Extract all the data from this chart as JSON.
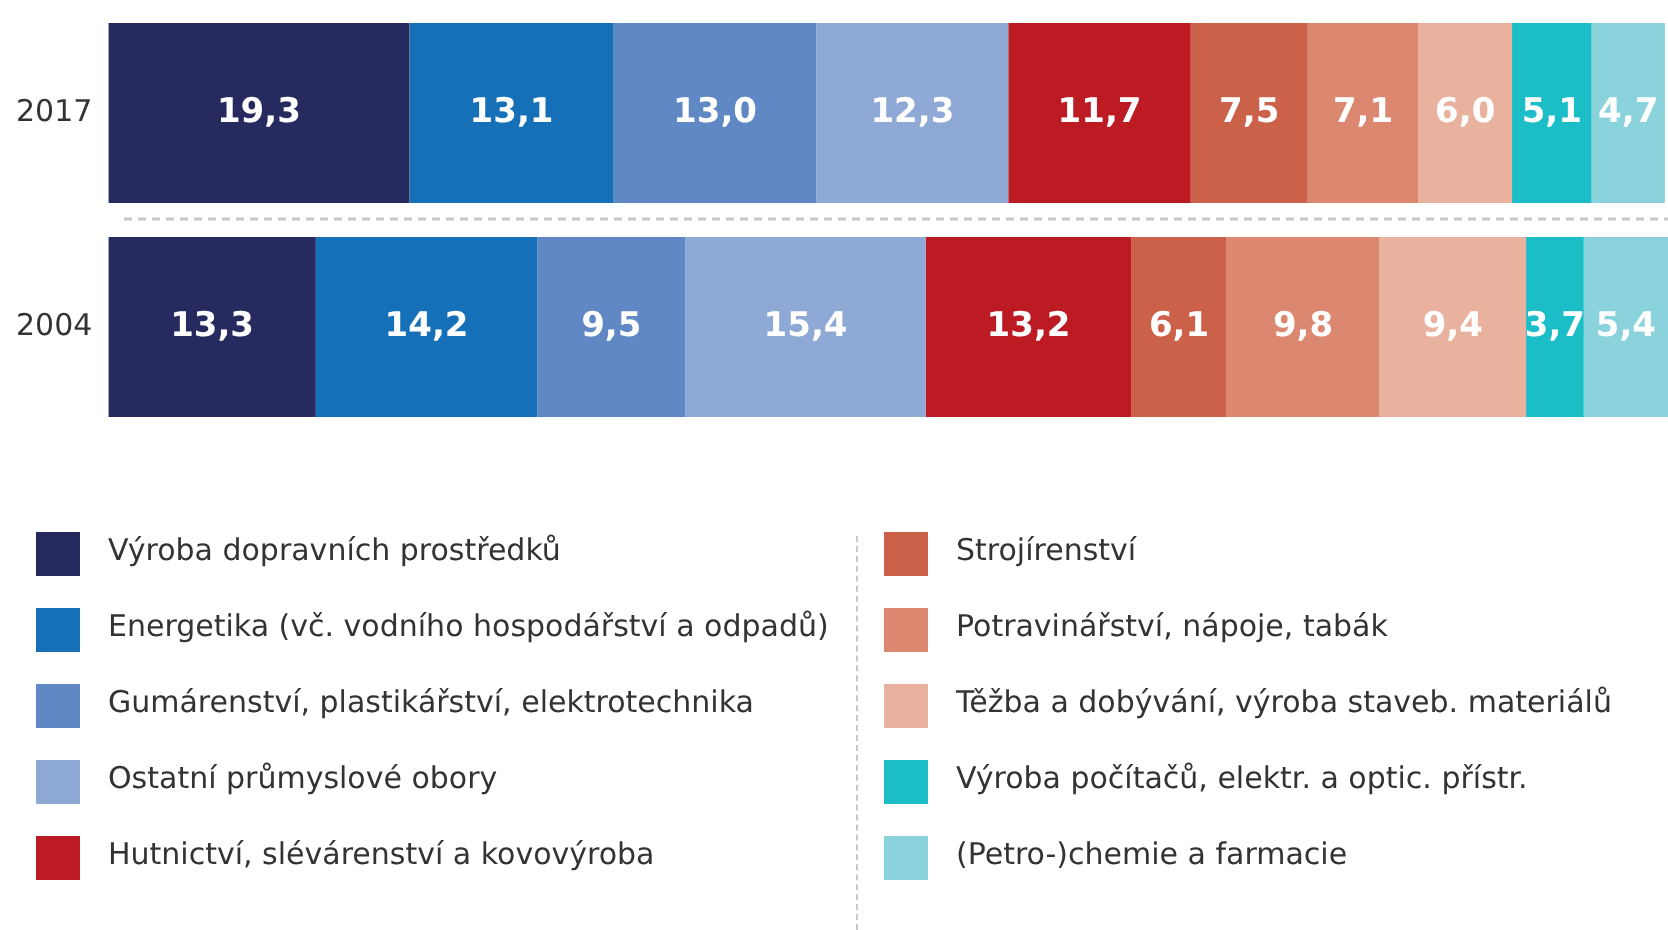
{
  "chart_data": {
    "type": "bar",
    "orientation": "horizontal",
    "stacked": true,
    "categories": [
      "2017",
      "2004"
    ],
    "xlim": [
      0,
      100
    ],
    "tick_labels": "y",
    "legend": "bottom",
    "series": [
      {
        "name": "Výroba dopravních prostředků",
        "color": "#262a5e",
        "values": [
          19.3,
          13.3
        ],
        "value_labels": [
          "19,3",
          "13,3"
        ]
      },
      {
        "name": "Energetika (vč. vodního hospodářství a odpadů)",
        "color": "#1570b8",
        "values": [
          13.1,
          14.2
        ],
        "value_labels": [
          "13,1",
          "14,2"
        ]
      },
      {
        "name": "Gumárenství, plastikářství, elektrotechnika",
        "color": "#5f88c5",
        "values": [
          13.0,
          9.5
        ],
        "value_labels": [
          "13,0",
          "9,5"
        ]
      },
      {
        "name": "Ostatní průmyslové obory",
        "color": "#8fa9d7",
        "values": [
          12.3,
          15.4
        ],
        "value_labels": [
          "12,3",
          "15,4"
        ]
      },
      {
        "name": "Hutnictví, slévárenství a kovovýroba",
        "color": "#bd1b23",
        "values": [
          11.7,
          13.2
        ],
        "value_labels": [
          "11,7",
          "13,2"
        ]
      },
      {
        "name": "Strojírenství",
        "color": "#cc614a",
        "values": [
          7.5,
          6.1
        ],
        "value_labels": [
          "7,5",
          "6,1"
        ]
      },
      {
        "name": "Potravinářství, nápoje, tabák",
        "color": "#dc8870",
        "values": [
          7.1,
          9.8
        ],
        "value_labels": [
          "7,1",
          "9,8"
        ]
      },
      {
        "name": "Těžba a dobývání, výroba staveb. materiálů",
        "color": "#e9b29e",
        "values": [
          6.0,
          9.4
        ],
        "value_labels": [
          "6,0",
          "9,4"
        ]
      },
      {
        "name": "Výroba počítačů, elektr. a optic. přístr.",
        "color": "#1bbdc7",
        "values": [
          5.1,
          3.7
        ],
        "value_labels": [
          "5,1",
          "3,7"
        ]
      },
      {
        "name": "(Petro-)chemie a farmacie",
        "color": "#8bd3dc",
        "values": [
          4.7,
          5.4
        ],
        "value_labels": [
          "4,7",
          "5,4"
        ]
      }
    ]
  }
}
